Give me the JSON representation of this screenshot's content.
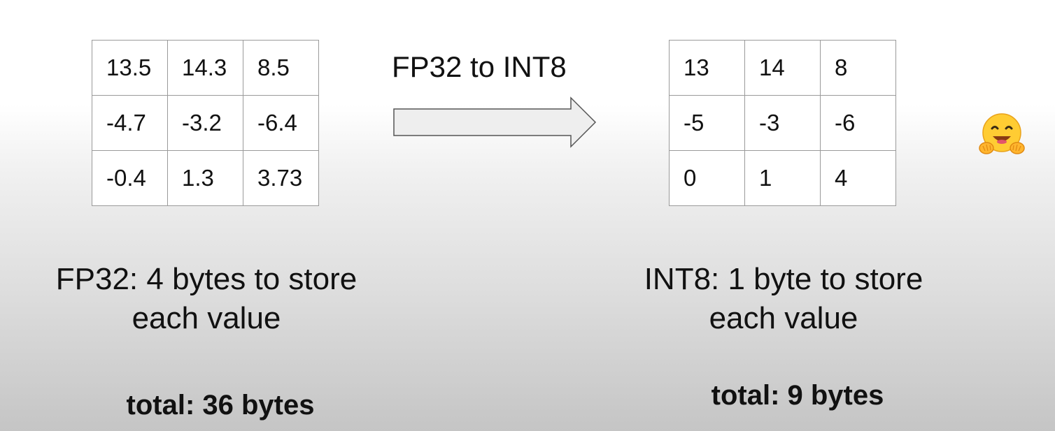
{
  "conversion_title": "FP32 to INT8",
  "fp32": {
    "rows": [
      [
        "13.5",
        "14.3",
        "8.5"
      ],
      [
        "-4.7",
        "-3.2",
        "-6.4"
      ],
      [
        "-0.4",
        "1.3",
        "3.73"
      ]
    ],
    "caption_line1": "FP32: 4 bytes to store",
    "caption_line2": "each value",
    "total": "total: 36 bytes"
  },
  "int8": {
    "rows": [
      [
        "13",
        "14",
        "8"
      ],
      [
        "-5",
        "-3",
        "-6"
      ],
      [
        "0",
        "1",
        "4"
      ]
    ],
    "caption_line1": "INT8: 1 byte to store",
    "caption_line2": "each value",
    "total": "total: 9 bytes"
  },
  "icons": {
    "arrow": "right-arrow-icon",
    "emoji": "hugging-face-icon"
  },
  "colors": {
    "grid_border": "#9a9a9a",
    "arrow_fill": "#eeeeee",
    "arrow_stroke": "#555555",
    "emoji_face": "#ffcc33"
  }
}
